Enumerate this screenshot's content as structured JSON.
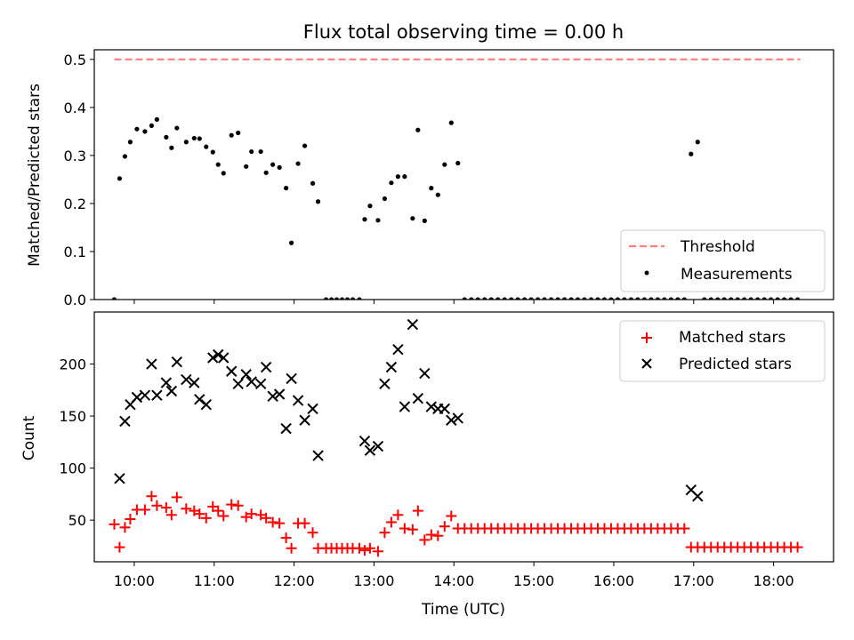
{
  "chart_data": [
    {
      "type": "scatter",
      "title": "Flux total observing time = 0.00 h",
      "xlabel": "",
      "ylabel": "Matched/Predicted stars",
      "ylim": [
        0,
        0.52
      ],
      "yticks": [
        "0.0",
        "0.1",
        "0.2",
        "0.3",
        "0.4",
        "0.5"
      ],
      "legend_position": "lower-right",
      "threshold": {
        "name": "Threshold",
        "value": 0.5,
        "x_start": "09:45",
        "x_end": "18:20",
        "color": "#ff7f7f",
        "style": "dashed"
      },
      "series": [
        {
          "name": "Measurements",
          "color": "#000000",
          "marker": "dot",
          "points": [
            [
              "09:45",
              0.0
            ],
            [
              "09:49",
              0.252
            ],
            [
              "09:53",
              0.298
            ],
            [
              "09:57",
              0.328
            ],
            [
              "10:02",
              0.355
            ],
            [
              "10:08",
              0.35
            ],
            [
              "10:13",
              0.362
            ],
            [
              "10:17",
              0.375
            ],
            [
              "10:24",
              0.338
            ],
            [
              "10:28",
              0.316
            ],
            [
              "10:32",
              0.357
            ],
            [
              "10:39",
              0.328
            ],
            [
              "10:45",
              0.336
            ],
            [
              "10:49",
              0.335
            ],
            [
              "10:54",
              0.318
            ],
            [
              "10:59",
              0.307
            ],
            [
              "11:03",
              0.281
            ],
            [
              "11:07",
              0.263
            ],
            [
              "11:13",
              0.342
            ],
            [
              "11:18",
              0.347
            ],
            [
              "11:24",
              0.277
            ],
            [
              "11:28",
              0.308
            ],
            [
              "11:35",
              0.308
            ],
            [
              "11:39",
              0.264
            ],
            [
              "11:44",
              0.281
            ],
            [
              "11:49",
              0.275
            ],
            [
              "11:54",
              0.232
            ],
            [
              "11:58",
              0.118
            ],
            [
              "12:03",
              0.283
            ],
            [
              "12:08",
              0.32
            ],
            [
              "12:14",
              0.242
            ],
            [
              "12:18",
              0.204
            ],
            [
              "12:24",
              0.0
            ],
            [
              "12:28",
              0.0
            ],
            [
              "12:32",
              0.0
            ],
            [
              "12:36",
              0.0
            ],
            [
              "12:40",
              0.0
            ],
            [
              "12:44",
              0.0
            ],
            [
              "12:49",
              0.0
            ],
            [
              "12:53",
              0.167
            ],
            [
              "12:57",
              0.195
            ],
            [
              "13:03",
              0.165
            ],
            [
              "13:08",
              0.21
            ],
            [
              "13:13",
              0.243
            ],
            [
              "13:18",
              0.256
            ],
            [
              "13:23",
              0.256
            ],
            [
              "13:29",
              0.169
            ],
            [
              "13:33",
              0.353
            ],
            [
              "13:38",
              0.164
            ],
            [
              "13:43",
              0.232
            ],
            [
              "13:48",
              0.218
            ],
            [
              "13:53",
              0.281
            ],
            [
              "13:58",
              0.368
            ],
            [
              "14:03",
              0.284
            ],
            [
              "14:08",
              0.0
            ],
            [
              "14:13",
              0.0
            ],
            [
              "14:18",
              0.0
            ],
            [
              "14:23",
              0.0
            ],
            [
              "14:28",
              0.0
            ],
            [
              "14:33",
              0.0
            ],
            [
              "14:38",
              0.0
            ],
            [
              "14:43",
              0.0
            ],
            [
              "14:48",
              0.0
            ],
            [
              "14:53",
              0.0
            ],
            [
              "14:58",
              0.0
            ],
            [
              "15:03",
              0.0
            ],
            [
              "15:08",
              0.0
            ],
            [
              "15:13",
              0.0
            ],
            [
              "15:18",
              0.0
            ],
            [
              "15:23",
              0.0
            ],
            [
              "15:28",
              0.0
            ],
            [
              "15:33",
              0.0
            ],
            [
              "15:38",
              0.0
            ],
            [
              "15:43",
              0.0
            ],
            [
              "15:48",
              0.0
            ],
            [
              "15:53",
              0.0
            ],
            [
              "15:58",
              0.0
            ],
            [
              "16:03",
              0.0
            ],
            [
              "16:08",
              0.0
            ],
            [
              "16:13",
              0.0
            ],
            [
              "16:18",
              0.0
            ],
            [
              "16:23",
              0.0
            ],
            [
              "16:28",
              0.0
            ],
            [
              "16:33",
              0.0
            ],
            [
              "16:38",
              0.0
            ],
            [
              "16:43",
              0.0
            ],
            [
              "16:48",
              0.0
            ],
            [
              "16:53",
              0.0
            ],
            [
              "16:58",
              0.303
            ],
            [
              "17:03",
              0.328
            ],
            [
              "17:08",
              0.0
            ],
            [
              "17:13",
              0.0
            ],
            [
              "17:18",
              0.0
            ],
            [
              "17:23",
              0.0
            ],
            [
              "17:28",
              0.0
            ],
            [
              "17:33",
              0.0
            ],
            [
              "17:38",
              0.0
            ],
            [
              "17:43",
              0.0
            ],
            [
              "17:48",
              0.0
            ],
            [
              "17:53",
              0.0
            ],
            [
              "17:58",
              0.0
            ],
            [
              "18:03",
              0.0
            ],
            [
              "18:08",
              0.0
            ],
            [
              "18:13",
              0.0
            ],
            [
              "18:18",
              0.0
            ]
          ]
        }
      ]
    },
    {
      "type": "scatter",
      "title": "",
      "xlabel": "Time (UTC)",
      "ylabel": "Count",
      "ylim": [
        10,
        250
      ],
      "yticks": [
        "50",
        "100",
        "150",
        "200"
      ],
      "xticks": [
        "10:00",
        "11:00",
        "12:00",
        "13:00",
        "14:00",
        "15:00",
        "16:00",
        "17:00",
        "18:00"
      ],
      "xlim": [
        "09:30",
        "18:45"
      ],
      "legend_position": "upper-right",
      "series": [
        {
          "name": "Matched stars",
          "color": "#ff0000",
          "marker": "plus",
          "points": [
            [
              "09:45",
              46
            ],
            [
              "09:49",
              24
            ],
            [
              "09:53",
              43
            ],
            [
              "09:57",
              51
            ],
            [
              "10:02",
              60
            ],
            [
              "10:08",
              60
            ],
            [
              "10:13",
              73
            ],
            [
              "10:17",
              64
            ],
            [
              "10:24",
              62
            ],
            [
              "10:28",
              55
            ],
            [
              "10:32",
              72
            ],
            [
              "10:39",
              61
            ],
            [
              "10:45",
              59
            ],
            [
              "10:49",
              56
            ],
            [
              "10:54",
              52
            ],
            [
              "10:59",
              63
            ],
            [
              "11:03",
              59
            ],
            [
              "11:07",
              54
            ],
            [
              "11:13",
              65
            ],
            [
              "11:18",
              64
            ],
            [
              "11:24",
              53
            ],
            [
              "11:28",
              56
            ],
            [
              "11:35",
              55
            ],
            [
              "11:39",
              52
            ],
            [
              "11:44",
              48
            ],
            [
              "11:49",
              47
            ],
            [
              "11:54",
              33
            ],
            [
              "11:58",
              23
            ],
            [
              "12:03",
              47
            ],
            [
              "12:08",
              47
            ],
            [
              "12:14",
              38
            ],
            [
              "12:18",
              23
            ],
            [
              "12:24",
              23
            ],
            [
              "12:28",
              23
            ],
            [
              "12:32",
              23
            ],
            [
              "12:36",
              23
            ],
            [
              "12:40",
              23
            ],
            [
              "12:44",
              23
            ],
            [
              "12:49",
              23
            ],
            [
              "12:53",
              21
            ],
            [
              "12:57",
              23
            ],
            [
              "13:03",
              20
            ],
            [
              "13:08",
              38
            ],
            [
              "13:13",
              48
            ],
            [
              "13:18",
              55
            ],
            [
              "13:23",
              42
            ],
            [
              "13:29",
              41
            ],
            [
              "13:33",
              59
            ],
            [
              "13:38",
              31
            ],
            [
              "13:43",
              36
            ],
            [
              "13:48",
              35
            ],
            [
              "13:53",
              44
            ],
            [
              "13:58",
              54
            ],
            [
              "14:03",
              42
            ],
            [
              "14:08",
              42
            ],
            [
              "14:13",
              42
            ],
            [
              "14:18",
              42
            ],
            [
              "14:23",
              42
            ],
            [
              "14:28",
              42
            ],
            [
              "14:33",
              42
            ],
            [
              "14:38",
              42
            ],
            [
              "14:43",
              42
            ],
            [
              "14:48",
              42
            ],
            [
              "14:53",
              42
            ],
            [
              "14:58",
              42
            ],
            [
              "15:03",
              42
            ],
            [
              "15:08",
              42
            ],
            [
              "15:13",
              42
            ],
            [
              "15:18",
              42
            ],
            [
              "15:23",
              42
            ],
            [
              "15:28",
              42
            ],
            [
              "15:33",
              42
            ],
            [
              "15:38",
              42
            ],
            [
              "15:43",
              42
            ],
            [
              "15:48",
              42
            ],
            [
              "15:53",
              42
            ],
            [
              "15:58",
              42
            ],
            [
              "16:03",
              42
            ],
            [
              "16:08",
              42
            ],
            [
              "16:13",
              42
            ],
            [
              "16:18",
              42
            ],
            [
              "16:23",
              42
            ],
            [
              "16:28",
              42
            ],
            [
              "16:33",
              42
            ],
            [
              "16:38",
              42
            ],
            [
              "16:43",
              42
            ],
            [
              "16:48",
              42
            ],
            [
              "16:53",
              42
            ],
            [
              "16:58",
              24
            ],
            [
              "17:03",
              24
            ],
            [
              "17:08",
              24
            ],
            [
              "17:13",
              24
            ],
            [
              "17:18",
              24
            ],
            [
              "17:23",
              24
            ],
            [
              "17:28",
              24
            ],
            [
              "17:33",
              24
            ],
            [
              "17:38",
              24
            ],
            [
              "17:43",
              24
            ],
            [
              "17:48",
              24
            ],
            [
              "17:53",
              24
            ],
            [
              "17:58",
              24
            ],
            [
              "18:03",
              24
            ],
            [
              "18:08",
              24
            ],
            [
              "18:13",
              24
            ],
            [
              "18:18",
              24
            ]
          ]
        },
        {
          "name": "Predicted stars",
          "color": "#000000",
          "marker": "x",
          "points": [
            [
              "09:49",
              90
            ],
            [
              "09:53",
              145
            ],
            [
              "09:57",
              161
            ],
            [
              "10:02",
              168
            ],
            [
              "10:08",
              170
            ],
            [
              "10:13",
              200
            ],
            [
              "10:17",
              170
            ],
            [
              "10:24",
              182
            ],
            [
              "10:28",
              174
            ],
            [
              "10:32",
              202
            ],
            [
              "10:39",
              185
            ],
            [
              "10:45",
              182
            ],
            [
              "10:49",
              166
            ],
            [
              "10:54",
              161
            ],
            [
              "10:59",
              206
            ],
            [
              "11:03",
              209
            ],
            [
              "11:07",
              206
            ],
            [
              "11:13",
              193
            ],
            [
              "11:18",
              181
            ],
            [
              "11:24",
              190
            ],
            [
              "11:28",
              183
            ],
            [
              "11:35",
              181
            ],
            [
              "11:39",
              197
            ],
            [
              "11:44",
              169
            ],
            [
              "11:49",
              171
            ],
            [
              "11:54",
              138
            ],
            [
              "11:58",
              186
            ],
            [
              "12:03",
              165
            ],
            [
              "12:08",
              146
            ],
            [
              "12:14",
              157
            ],
            [
              "12:18",
              112
            ],
            [
              "12:53",
              126
            ],
            [
              "12:57",
              117
            ],
            [
              "13:03",
              121
            ],
            [
              "13:08",
              181
            ],
            [
              "13:13",
              197
            ],
            [
              "13:18",
              214
            ],
            [
              "13:23",
              159
            ],
            [
              "13:29",
              238
            ],
            [
              "13:33",
              167
            ],
            [
              "13:38",
              191
            ],
            [
              "13:43",
              159
            ],
            [
              "13:48",
              157
            ],
            [
              "13:53",
              157
            ],
            [
              "13:58",
              146
            ],
            [
              "14:03",
              148
            ],
            [
              "16:58",
              79
            ],
            [
              "17:03",
              73
            ]
          ]
        }
      ]
    }
  ]
}
